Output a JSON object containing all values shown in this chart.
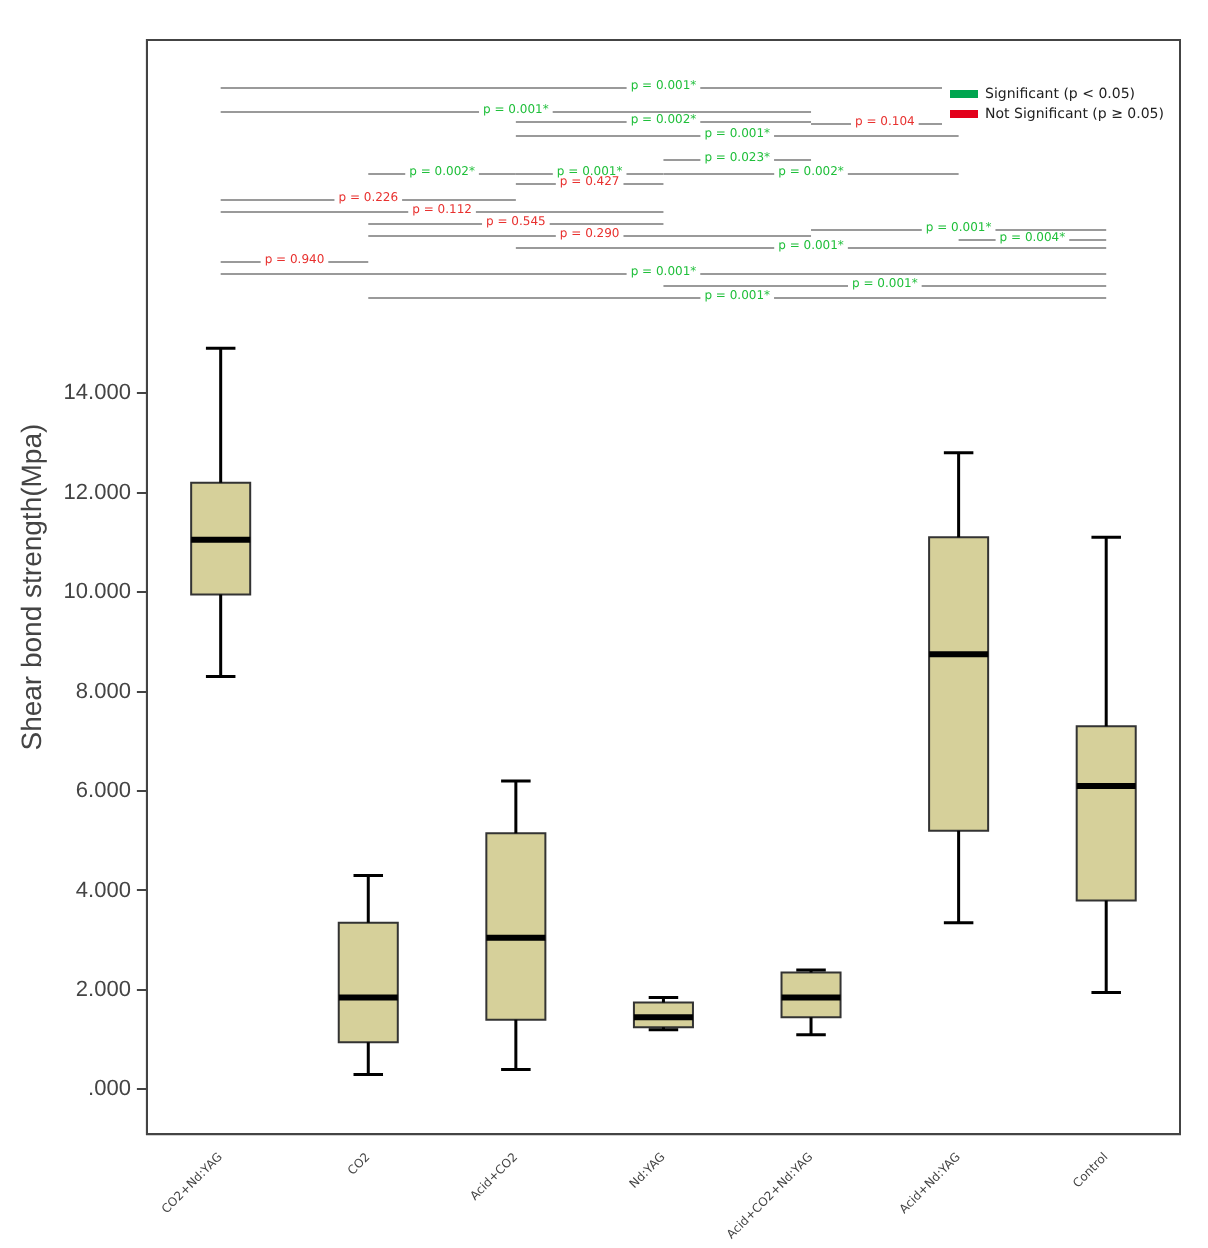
{
  "chart_data": {
    "type": "box",
    "ylabel": "Shear bond strength(Mpa)",
    "categories": [
      "CO2+Nd:YAG",
      "CO2",
      "Acid+CO2",
      "Nd:YAG",
      "Acid+CO2+Nd:YAG",
      "Acid+Nd:YAG",
      "Control"
    ],
    "color": "#d6d09a",
    "boxes": [
      {
        "low": 8.3,
        "q1": 9.95,
        "median": 11.05,
        "q3": 12.2,
        "high": 14.9
      },
      {
        "low": 0.3,
        "q1": 0.95,
        "median": 1.85,
        "q3": 3.35,
        "high": 4.3
      },
      {
        "low": 0.4,
        "q1": 1.4,
        "median": 3.05,
        "q3": 5.15,
        "high": 6.2
      },
      {
        "low": 1.2,
        "q1": 1.25,
        "median": 1.45,
        "q3": 1.75,
        "high": 1.85
      },
      {
        "low": 1.1,
        "q1": 1.45,
        "median": 1.85,
        "q3": 2.35,
        "high": 2.4
      },
      {
        "low": 3.35,
        "q1": 5.2,
        "median": 8.75,
        "q3": 11.1,
        "high": 12.8
      },
      {
        "low": 1.95,
        "q1": 3.8,
        "median": 6.1,
        "q3": 7.3,
        "high": 11.1
      }
    ],
    "ylim": [
      -0.9,
      21.1
    ],
    "yticks": [
      {
        "value": 0,
        "label": ".000"
      },
      {
        "value": 2,
        "label": "2.000"
      },
      {
        "value": 4,
        "label": "4.000"
      },
      {
        "value": 6,
        "label": "6.000"
      },
      {
        "value": 8,
        "label": "8.000"
      },
      {
        "value": 10,
        "label": "10.000"
      },
      {
        "value": 12,
        "label": "12.000"
      },
      {
        "value": 14,
        "label": "14.000"
      }
    ],
    "grid": false,
    "annotations": [
      "p = 0.001*",
      "p = 0.001*",
      "p = 0.002*",
      "p = 0.104",
      "p = 0.001*",
      "p = 0.023*",
      "p = 0.002*",
      "p = 0.001*",
      "p = 0.002*",
      "p = 0.427",
      "p = 0.226",
      "p = 0.112",
      "p = 0.545",
      "p = 0.290",
      "p = 0.001*",
      "p = 0.004*",
      "p = 0.001*",
      "p = 0.940",
      "p = 0.001*",
      "p = 0.001*",
      "p = 0.001*",
      "Significant (p < 0.05)",
      "Not Significant (p ≥ 0.05)"
    ]
  }
}
